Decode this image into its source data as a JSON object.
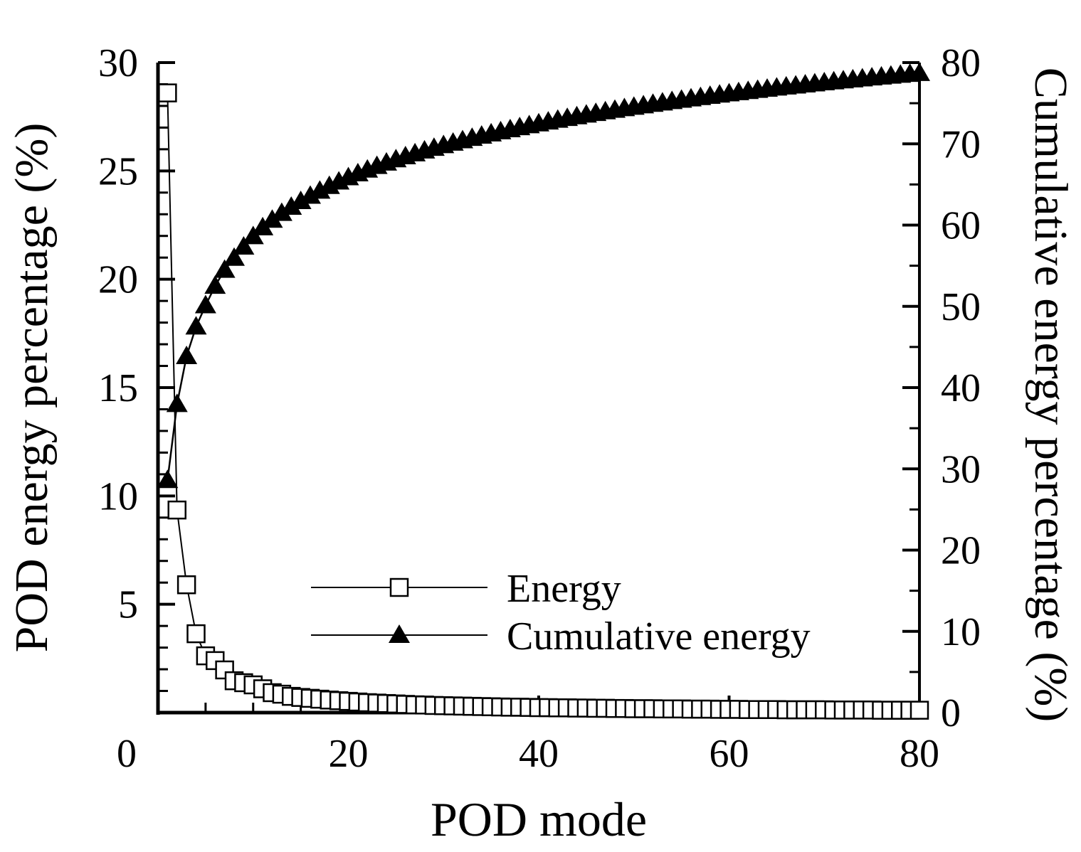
{
  "chart_data": {
    "type": "line",
    "title": "",
    "xlabel": "POD mode",
    "ylabel": "POD energy percentage (%)",
    "y2label": "Cumulative energy percentage (%)",
    "xlim": [
      0,
      80
    ],
    "ylim": [
      0,
      30
    ],
    "y2lim": [
      0,
      80
    ],
    "xticks": [
      "0",
      "20",
      "40",
      "60",
      "80"
    ],
    "yticks": [
      "5",
      "10",
      "15",
      "20",
      "25",
      "30"
    ],
    "y2ticks": [
      "0",
      "10",
      "20",
      "30",
      "40",
      "50",
      "60",
      "70",
      "80"
    ],
    "grid": false,
    "legend_position": "bottom-center",
    "x": [
      1,
      2,
      3,
      4,
      5,
      6,
      7,
      8,
      9,
      10,
      11,
      12,
      13,
      14,
      15,
      16,
      17,
      18,
      19,
      20,
      21,
      22,
      23,
      24,
      25,
      26,
      27,
      28,
      29,
      30,
      31,
      32,
      33,
      34,
      35,
      36,
      37,
      38,
      39,
      40,
      41,
      42,
      43,
      44,
      45,
      46,
      47,
      48,
      49,
      50,
      51,
      52,
      53,
      54,
      55,
      56,
      57,
      58,
      59,
      60,
      61,
      62,
      63,
      64,
      65,
      66,
      67,
      68,
      69,
      70,
      71,
      72,
      73,
      74,
      75,
      76,
      77,
      78,
      79,
      80
    ],
    "series": [
      {
        "name": "Energy",
        "axis": "left",
        "marker": "open-square",
        "color": "#000000",
        "values": [
          28.6,
          9.35,
          5.9,
          3.64,
          2.62,
          2.4,
          1.97,
          1.47,
          1.38,
          1.28,
          1.1,
          0.92,
          0.85,
          0.75,
          0.7,
          0.66,
          0.62,
          0.58,
          0.55,
          0.52,
          0.49,
          0.46,
          0.44,
          0.42,
          0.4,
          0.38,
          0.36,
          0.35,
          0.33,
          0.32,
          0.31,
          0.3,
          0.29,
          0.28,
          0.27,
          0.26,
          0.25,
          0.25,
          0.24,
          0.23,
          0.23,
          0.22,
          0.22,
          0.21,
          0.21,
          0.2,
          0.2,
          0.19,
          0.19,
          0.18,
          0.18,
          0.18,
          0.17,
          0.17,
          0.17,
          0.16,
          0.16,
          0.16,
          0.15,
          0.15,
          0.15,
          0.14,
          0.14,
          0.14,
          0.14,
          0.13,
          0.13,
          0.13,
          0.13,
          0.13,
          0.12,
          0.12,
          0.12,
          0.12,
          0.12,
          0.11,
          0.11,
          0.11,
          0.11,
          0.11
        ]
      },
      {
        "name": "Cumulative energy",
        "axis": "right",
        "marker": "filled-triangle",
        "color": "#000000",
        "values": [
          28.6,
          37.95,
          43.85,
          47.49,
          50.11,
          52.51,
          54.48,
          55.95,
          57.33,
          58.61,
          59.71,
          60.63,
          61.48,
          62.23,
          62.93,
          63.59,
          64.21,
          64.79,
          65.34,
          65.86,
          66.35,
          66.81,
          67.25,
          67.67,
          68.07,
          68.45,
          68.81,
          69.16,
          69.49,
          69.81,
          70.12,
          70.42,
          70.71,
          70.99,
          71.26,
          71.52,
          71.77,
          72.02,
          72.26,
          72.49,
          72.72,
          72.94,
          73.16,
          73.37,
          73.58,
          73.78,
          73.98,
          74.17,
          74.36,
          74.54,
          74.72,
          74.9,
          75.07,
          75.24,
          75.41,
          75.57,
          75.73,
          75.89,
          76.04,
          76.19,
          76.34,
          76.48,
          76.62,
          76.76,
          76.9,
          77.03,
          77.16,
          77.29,
          77.42,
          77.55,
          77.67,
          77.79,
          77.91,
          78.03,
          78.15,
          78.26,
          78.37,
          78.48,
          78.59,
          78.7
        ]
      }
    ]
  }
}
